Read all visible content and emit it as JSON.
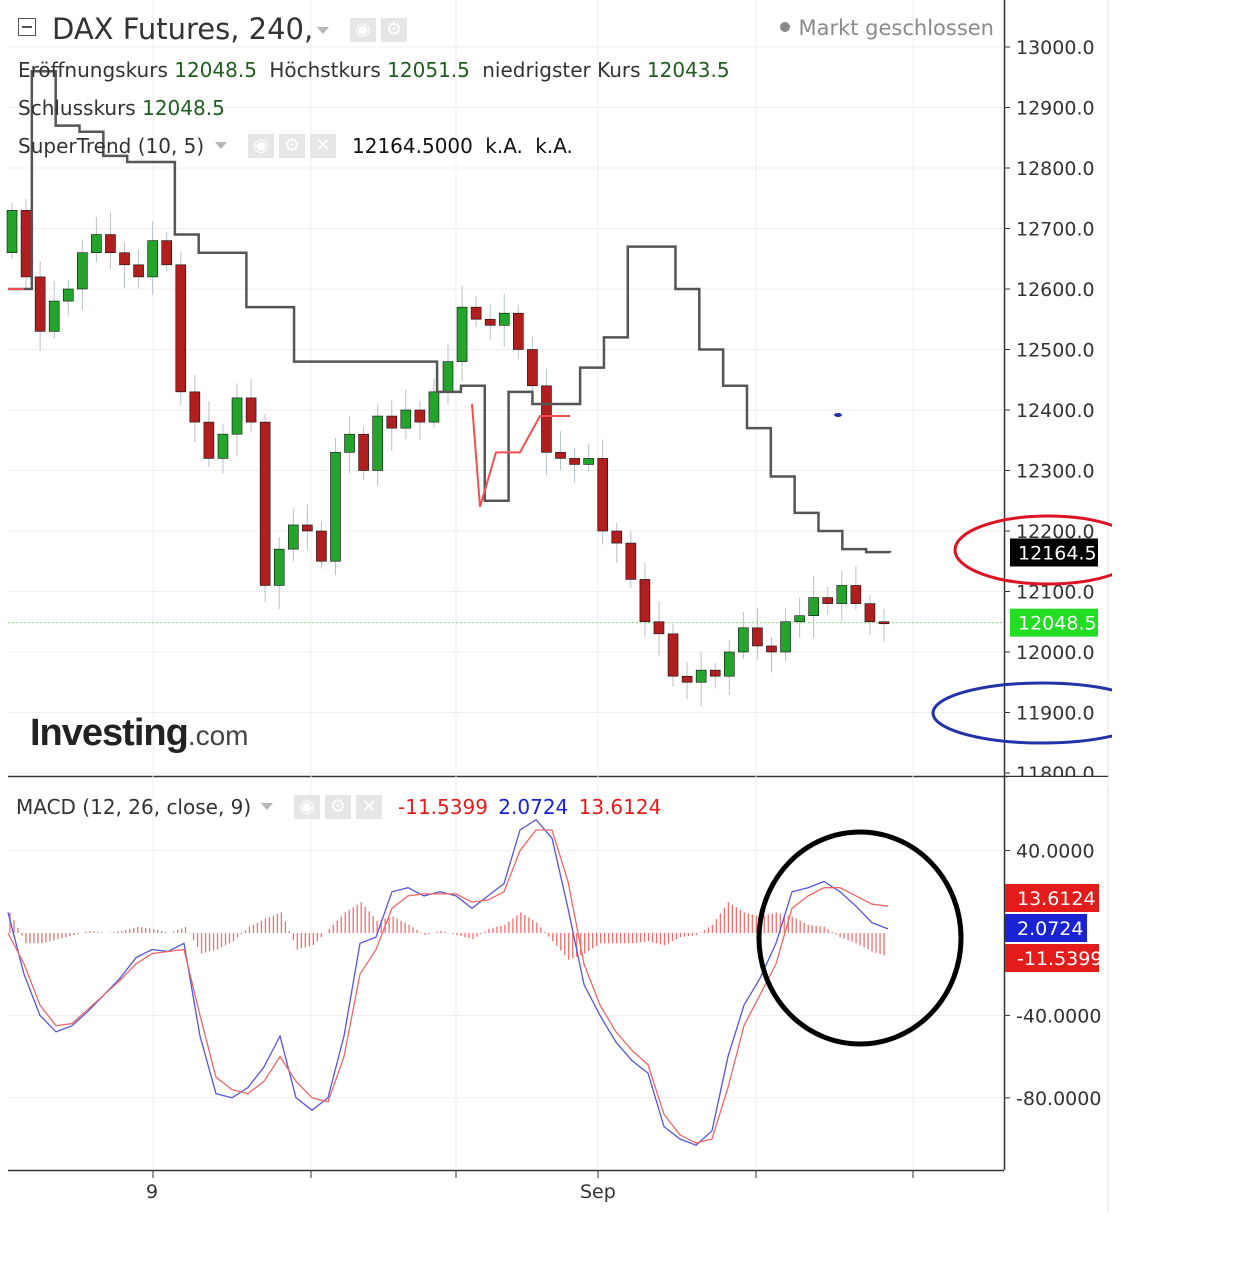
{
  "header": {
    "title": "DAX Futures, 240,",
    "status": "Markt geschlossen",
    "open_label": "Eröffnungskurs",
    "open_value": "12048.5",
    "high_label": "Höchstkurs",
    "high_value": "12051.5",
    "low_label": "niedrigster Kurs",
    "low_value": "12043.5",
    "close_label": "Schlusskurs",
    "close_value": "12048.5"
  },
  "supertrend": {
    "label": "SuperTrend (10, 5)",
    "value": "12164.5000",
    "na1": "k.A.",
    "na2": "k.A."
  },
  "macd": {
    "label": "MACD (12, 26, close, 9)",
    "hist_value": "-11.5399",
    "macd_value": "2.0724",
    "signal_value": "13.6124"
  },
  "logo": {
    "main": "Investing",
    "suffix": ".com"
  },
  "icons": [
    "collapse-icon",
    "caret-down-icon",
    "eye-icon",
    "gear-icon",
    "close-icon"
  ],
  "colors": {
    "up_candle": "#22a52a",
    "down_candle": "#b01e1e",
    "supertrend_line": "#555555",
    "supertrend_up": "#f05050",
    "last_price": "#22cc22",
    "macd_line": "#5555dd",
    "signal_line": "#ee6666",
    "histogram": "#f07070",
    "annotation_red": "#dd1122",
    "annotation_blue": "#2233aa",
    "annotation_black": "#000000"
  },
  "chart_data": [
    {
      "type": "candlestick",
      "title": "DAX Futures, 240,",
      "yaxis_ticks": [
        "13000.0",
        "12900.0",
        "12800.0",
        "12700.0",
        "12600.0",
        "12500.0",
        "12400.0",
        "12300.0",
        "12200.0",
        "12100.0",
        "12000.0",
        "11900.0",
        "11800.0"
      ],
      "ylim": [
        11800,
        13000
      ],
      "xaxis_labels": [
        "9",
        "Sep"
      ],
      "price_markers": [
        {
          "label": "12164.5",
          "value": 12164.5,
          "series": "SuperTrend",
          "color": "#000000"
        },
        {
          "label": "12048.5",
          "value": 12048.5,
          "series": "Last price",
          "color": "#22cc22"
        }
      ],
      "close_series": [
        12730,
        12620,
        12530,
        12580,
        12600,
        12660,
        12690,
        12660,
        12640,
        12620,
        12680,
        12640,
        12430,
        12380,
        12320,
        12360,
        12420,
        12380,
        12110,
        12170,
        12210,
        12200,
        12150,
        12330,
        12360,
        12300,
        12390,
        12370,
        12400,
        12380,
        12430,
        12480,
        12570,
        12550,
        12540,
        12560,
        12500,
        12440,
        12330,
        12320,
        12310,
        12320,
        12200,
        12180,
        12120,
        12050,
        12030,
        11960,
        11950,
        11970,
        11960,
        12000,
        12040,
        12010,
        12000,
        12050,
        12060,
        12090,
        12080,
        12110,
        12080,
        12050,
        12048.5
      ],
      "supertrend_series": [
        12600,
        12960,
        12870,
        12860,
        12820,
        12810,
        12810,
        12690,
        12660,
        12660,
        12570,
        12570,
        12480,
        12480,
        12480,
        12480,
        12480,
        12480,
        12430,
        12440,
        12250,
        12430,
        12410,
        12410,
        12470,
        12520,
        12670,
        12670,
        12600,
        12500,
        12440,
        12370,
        12290,
        12230,
        12200,
        12170,
        12165,
        12164.5
      ]
    },
    {
      "type": "line",
      "title": "MACD (12, 26, close, 9)",
      "yaxis_ticks": [
        "40.0000",
        "-40.0000",
        "-80.0000"
      ],
      "ylim": [
        -113,
        57
      ],
      "value_markers": [
        {
          "label": "13.6124",
          "value": 13.6124,
          "series": "signal",
          "color": "#e41b1b"
        },
        {
          "label": "2.0724",
          "value": 2.0724,
          "series": "macd",
          "color": "#1a22d6"
        },
        {
          "label": "-11.5399",
          "value": -11.5399,
          "series": "histogram",
          "color": "#e41b1b"
        }
      ],
      "series": [
        {
          "values": [
            10,
            -20,
            -40,
            -48,
            -45,
            -38,
            -30,
            -22,
            -12,
            -8,
            -9,
            -5,
            -50,
            -78,
            -80,
            -75,
            -65,
            -50,
            -80,
            -86,
            -80,
            -50,
            -5,
            -2,
            20,
            22,
            18,
            20,
            18,
            12,
            18,
            24,
            50,
            55,
            46,
            12,
            -25,
            -40,
            -53,
            -62,
            -68,
            -94,
            -100,
            -103,
            -96,
            -60,
            -35,
            -22,
            -5,
            20,
            22,
            25,
            20,
            13,
            5,
            2
          ]
        },
        {
          "values": [
            0,
            -15,
            -35,
            -45,
            -44,
            -37,
            -30,
            -23,
            -15,
            -10,
            -9,
            -8,
            -40,
            -70,
            -76,
            -78,
            -72,
            -60,
            -72,
            -80,
            -82,
            -60,
            -20,
            -8,
            12,
            18,
            19,
            19,
            19,
            15,
            16,
            20,
            40,
            50,
            50,
            25,
            -15,
            -35,
            -48,
            -57,
            -64,
            -88,
            -98,
            -102,
            -100,
            -75,
            -45,
            -30,
            -15,
            12,
            18,
            22,
            22,
            18,
            14,
            13
          ]
        },
        {
          "values": [
            10,
            -5,
            -5,
            -3,
            -1,
            1,
            0,
            1,
            3,
            2,
            0,
            3,
            -10,
            -8,
            -4,
            3,
            7,
            10,
            -8,
            -6,
            2,
            10,
            15,
            6,
            8,
            4,
            -1,
            1,
            -1,
            -3,
            2,
            4,
            10,
            5,
            -4,
            -13,
            -10,
            -5,
            -5,
            -5,
            -4,
            -6,
            -2,
            -1,
            4,
            15,
            10,
            8,
            10,
            8,
            4,
            3,
            -2,
            -5,
            -9,
            -11.5
          ]
        }
      ]
    }
  ]
}
